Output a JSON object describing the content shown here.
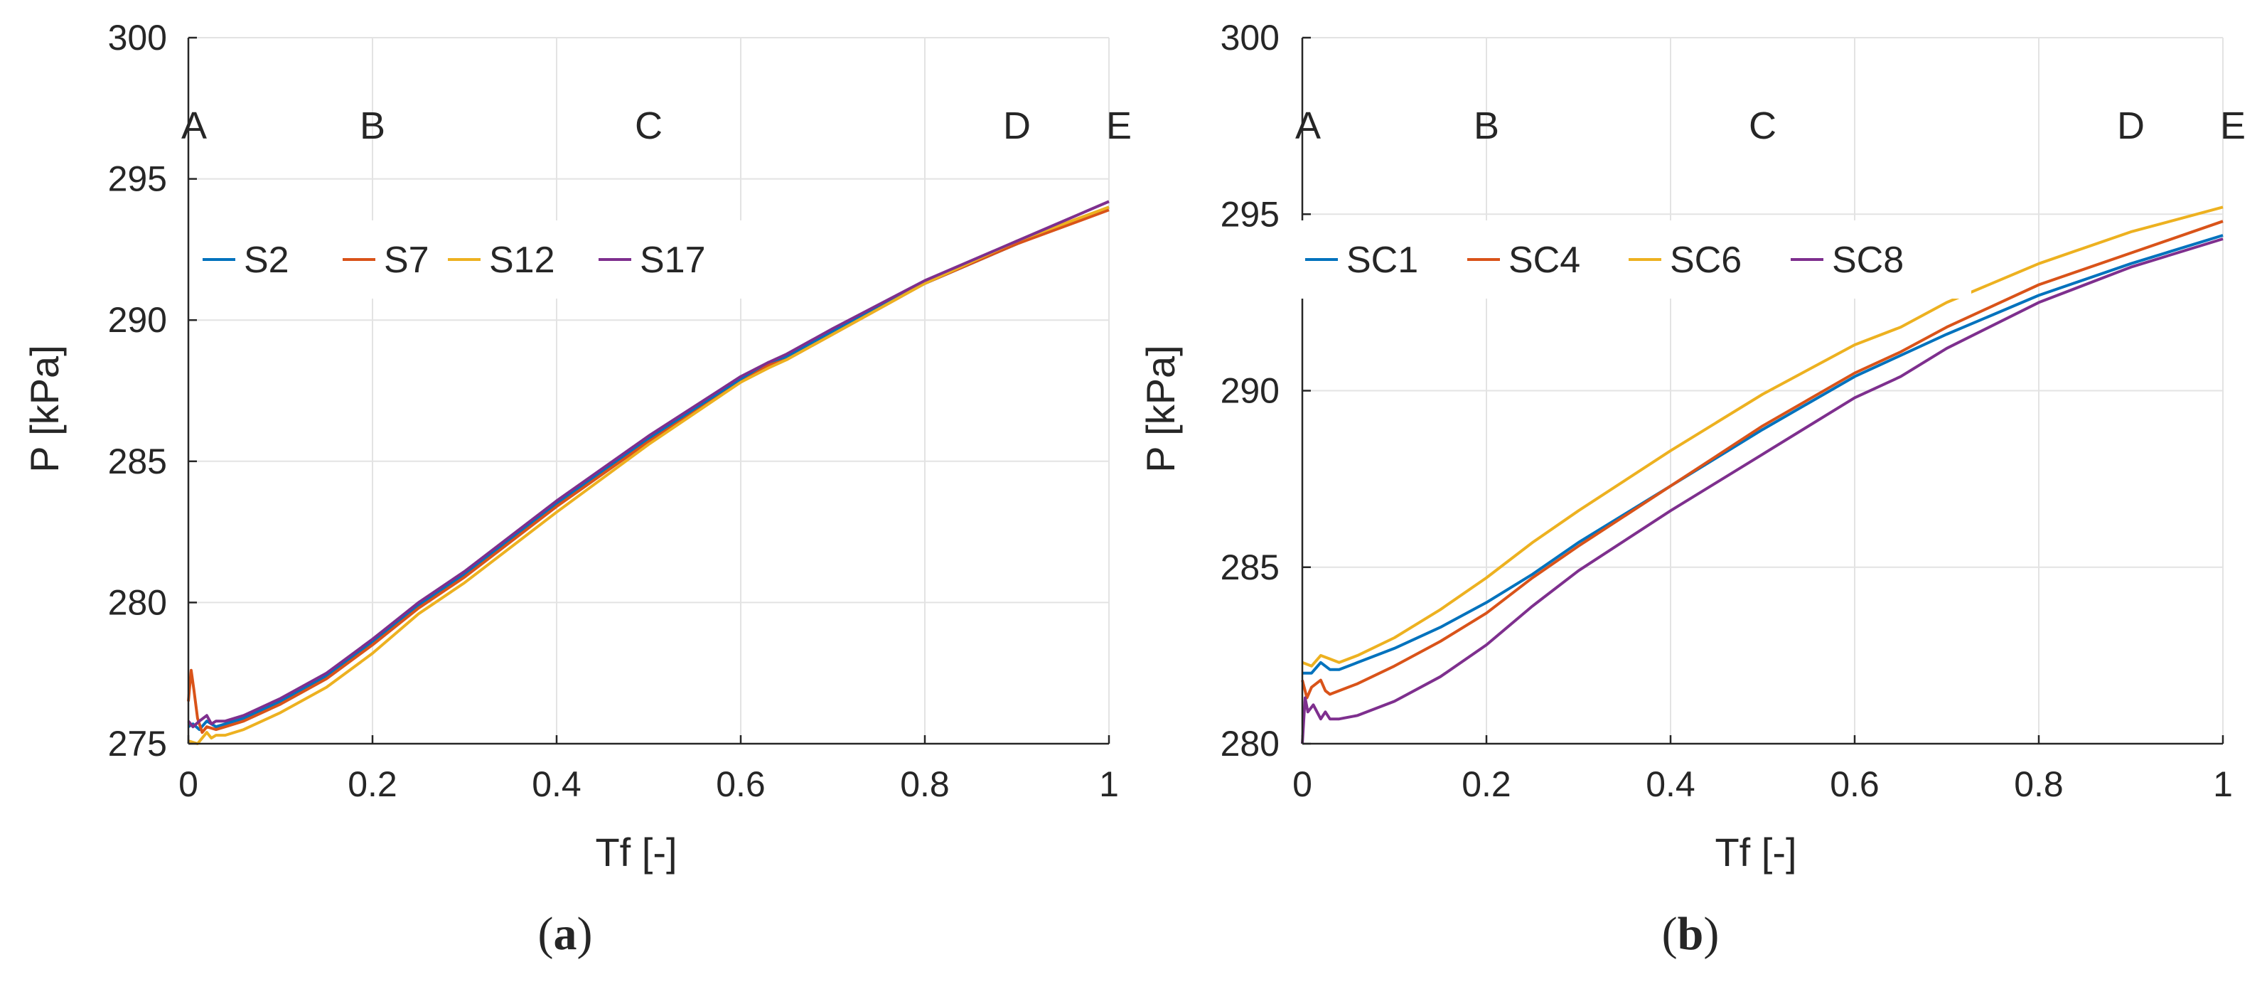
{
  "chart_data": [
    {
      "panel": "a",
      "caption_open": "(",
      "caption_letter": "a",
      "caption_close": ")",
      "type": "line",
      "xlabel": "Tf [-]",
      "ylabel": "P [kPa]",
      "xlim": [
        0,
        1
      ],
      "ylim": [
        275,
        300
      ],
      "xticks": [
        0,
        0.2,
        0.4,
        0.6,
        0.8,
        1
      ],
      "xtick_labels": [
        "0",
        "0.2",
        "0.4",
        "0.6",
        "0.8",
        "1"
      ],
      "yticks": [
        275,
        280,
        285,
        290,
        295,
        300
      ],
      "ytick_labels": [
        "275",
        "280",
        "285",
        "290",
        "295",
        "300"
      ],
      "grid": true,
      "legend_placement": "upper-left, single row",
      "annotations": [
        {
          "text": "A",
          "x": 0.0
        },
        {
          "text": "B",
          "x": 0.2
        },
        {
          "text": "C",
          "x": 0.5
        },
        {
          "text": "D",
          "x": 0.9
        },
        {
          "text": "E",
          "x": 1.0
        }
      ],
      "series": [
        {
          "name": "S2",
          "color": "#0072BD",
          "x": [
            0,
            0.005,
            0.012,
            0.02,
            0.03,
            0.04,
            0.06,
            0.1,
            0.15,
            0.2,
            0.25,
            0.3,
            0.4,
            0.5,
            0.6,
            0.63,
            0.65,
            0.7,
            0.8,
            0.9,
            1.0
          ],
          "y": [
            275.6,
            275.7,
            275.5,
            275.8,
            275.6,
            275.7,
            275.9,
            276.5,
            277.4,
            278.6,
            279.9,
            281.0,
            283.5,
            285.8,
            287.9,
            288.5,
            288.7,
            289.6,
            291.3,
            292.7,
            294.0
          ]
        },
        {
          "name": "S7",
          "color": "#D95319",
          "x": [
            0,
            0.003,
            0.006,
            0.01,
            0.015,
            0.02,
            0.03,
            0.04,
            0.06,
            0.1,
            0.15,
            0.2,
            0.25,
            0.3,
            0.4,
            0.5,
            0.6,
            0.63,
            0.65,
            0.7,
            0.8,
            0.9,
            1.0
          ],
          "y": [
            276.5,
            277.6,
            276.9,
            275.9,
            275.4,
            275.6,
            275.5,
            275.6,
            275.8,
            276.4,
            277.3,
            278.5,
            279.8,
            280.9,
            283.4,
            285.7,
            287.8,
            288.4,
            288.6,
            289.5,
            291.3,
            292.7,
            293.9
          ]
        },
        {
          "name": "S12",
          "color": "#EDB120",
          "x": [
            0,
            0.01,
            0.02,
            0.025,
            0.03,
            0.04,
            0.06,
            0.1,
            0.15,
            0.2,
            0.25,
            0.3,
            0.4,
            0.5,
            0.6,
            0.63,
            0.65,
            0.7,
            0.8,
            0.9,
            1.0
          ],
          "y": [
            275.1,
            275.0,
            275.4,
            275.2,
            275.3,
            275.3,
            275.5,
            276.1,
            277.0,
            278.2,
            279.6,
            280.7,
            283.2,
            285.6,
            287.8,
            288.3,
            288.6,
            289.5,
            291.3,
            292.8,
            294.0
          ]
        },
        {
          "name": "S17",
          "color": "#7E2F8E",
          "x": [
            0,
            0.005,
            0.012,
            0.02,
            0.025,
            0.03,
            0.04,
            0.06,
            0.1,
            0.15,
            0.2,
            0.25,
            0.3,
            0.4,
            0.5,
            0.6,
            0.63,
            0.65,
            0.7,
            0.8,
            0.9,
            1.0
          ],
          "y": [
            275.8,
            275.6,
            275.8,
            276.0,
            275.7,
            275.8,
            275.8,
            276.0,
            276.6,
            277.5,
            278.7,
            280.0,
            281.1,
            283.6,
            285.9,
            288.0,
            288.5,
            288.8,
            289.7,
            291.4,
            292.8,
            294.2
          ]
        }
      ]
    },
    {
      "panel": "b",
      "caption_open": "(",
      "caption_letter": "b",
      "caption_close": ")",
      "type": "line",
      "xlabel": "Tf [-]",
      "ylabel": "P [kPa]",
      "xlim": [
        0,
        1
      ],
      "ylim": [
        280,
        300
      ],
      "xticks": [
        0,
        0.2,
        0.4,
        0.6,
        0.8,
        1
      ],
      "xtick_labels": [
        "0",
        "0.2",
        "0.4",
        "0.6",
        "0.8",
        "1"
      ],
      "yticks": [
        280,
        285,
        290,
        295,
        300
      ],
      "ytick_labels": [
        "280",
        "285",
        "290",
        "295",
        "300"
      ],
      "grid": true,
      "legend_placement": "upper-left, single row",
      "annotations": [
        {
          "text": "A",
          "x": 0.0
        },
        {
          "text": "B",
          "x": 0.2
        },
        {
          "text": "C",
          "x": 0.5
        },
        {
          "text": "D",
          "x": 0.9
        },
        {
          "text": "E",
          "x": 1.0
        }
      ],
      "series": [
        {
          "name": "SC1",
          "color": "#0072BD",
          "x": [
            0,
            0.01,
            0.02,
            0.03,
            0.04,
            0.06,
            0.1,
            0.15,
            0.2,
            0.25,
            0.3,
            0.4,
            0.5,
            0.6,
            0.65,
            0.7,
            0.8,
            0.9,
            1.0
          ],
          "y": [
            282.0,
            282.0,
            282.3,
            282.1,
            282.1,
            282.3,
            282.7,
            283.3,
            284.0,
            284.8,
            285.7,
            287.3,
            288.9,
            290.4,
            291.0,
            291.6,
            292.7,
            293.6,
            294.4
          ]
        },
        {
          "name": "SC4",
          "color": "#D95319",
          "x": [
            0,
            0.005,
            0.01,
            0.02,
            0.025,
            0.03,
            0.04,
            0.06,
            0.1,
            0.15,
            0.2,
            0.25,
            0.3,
            0.4,
            0.5,
            0.6,
            0.65,
            0.7,
            0.8,
            0.9,
            1.0
          ],
          "y": [
            281.8,
            281.3,
            281.6,
            281.8,
            281.5,
            281.4,
            281.5,
            281.7,
            282.2,
            282.9,
            283.7,
            284.7,
            285.6,
            287.3,
            289.0,
            290.5,
            291.1,
            291.8,
            293.0,
            293.9,
            294.8
          ]
        },
        {
          "name": "SC6",
          "color": "#EDB120",
          "x": [
            0,
            0.01,
            0.02,
            0.03,
            0.04,
            0.06,
            0.1,
            0.15,
            0.2,
            0.25,
            0.3,
            0.4,
            0.5,
            0.6,
            0.65,
            0.7,
            0.8,
            0.9,
            1.0
          ],
          "y": [
            282.3,
            282.2,
            282.5,
            282.4,
            282.3,
            282.5,
            283.0,
            283.8,
            284.7,
            285.7,
            286.6,
            288.3,
            289.9,
            291.3,
            291.8,
            292.5,
            293.6,
            294.5,
            295.2
          ]
        },
        {
          "name": "SC8",
          "color": "#7E2F8E",
          "x": [
            0,
            0.003,
            0.006,
            0.012,
            0.02,
            0.025,
            0.03,
            0.04,
            0.06,
            0.1,
            0.15,
            0.2,
            0.25,
            0.3,
            0.4,
            0.5,
            0.6,
            0.65,
            0.7,
            0.8,
            0.9,
            1.0
          ],
          "y": [
            280.0,
            281.3,
            280.9,
            281.1,
            280.7,
            280.9,
            280.7,
            280.7,
            280.8,
            281.2,
            281.9,
            282.8,
            283.9,
            284.9,
            286.6,
            288.2,
            289.8,
            290.4,
            291.2,
            292.5,
            293.5,
            294.3
          ]
        }
      ]
    }
  ]
}
